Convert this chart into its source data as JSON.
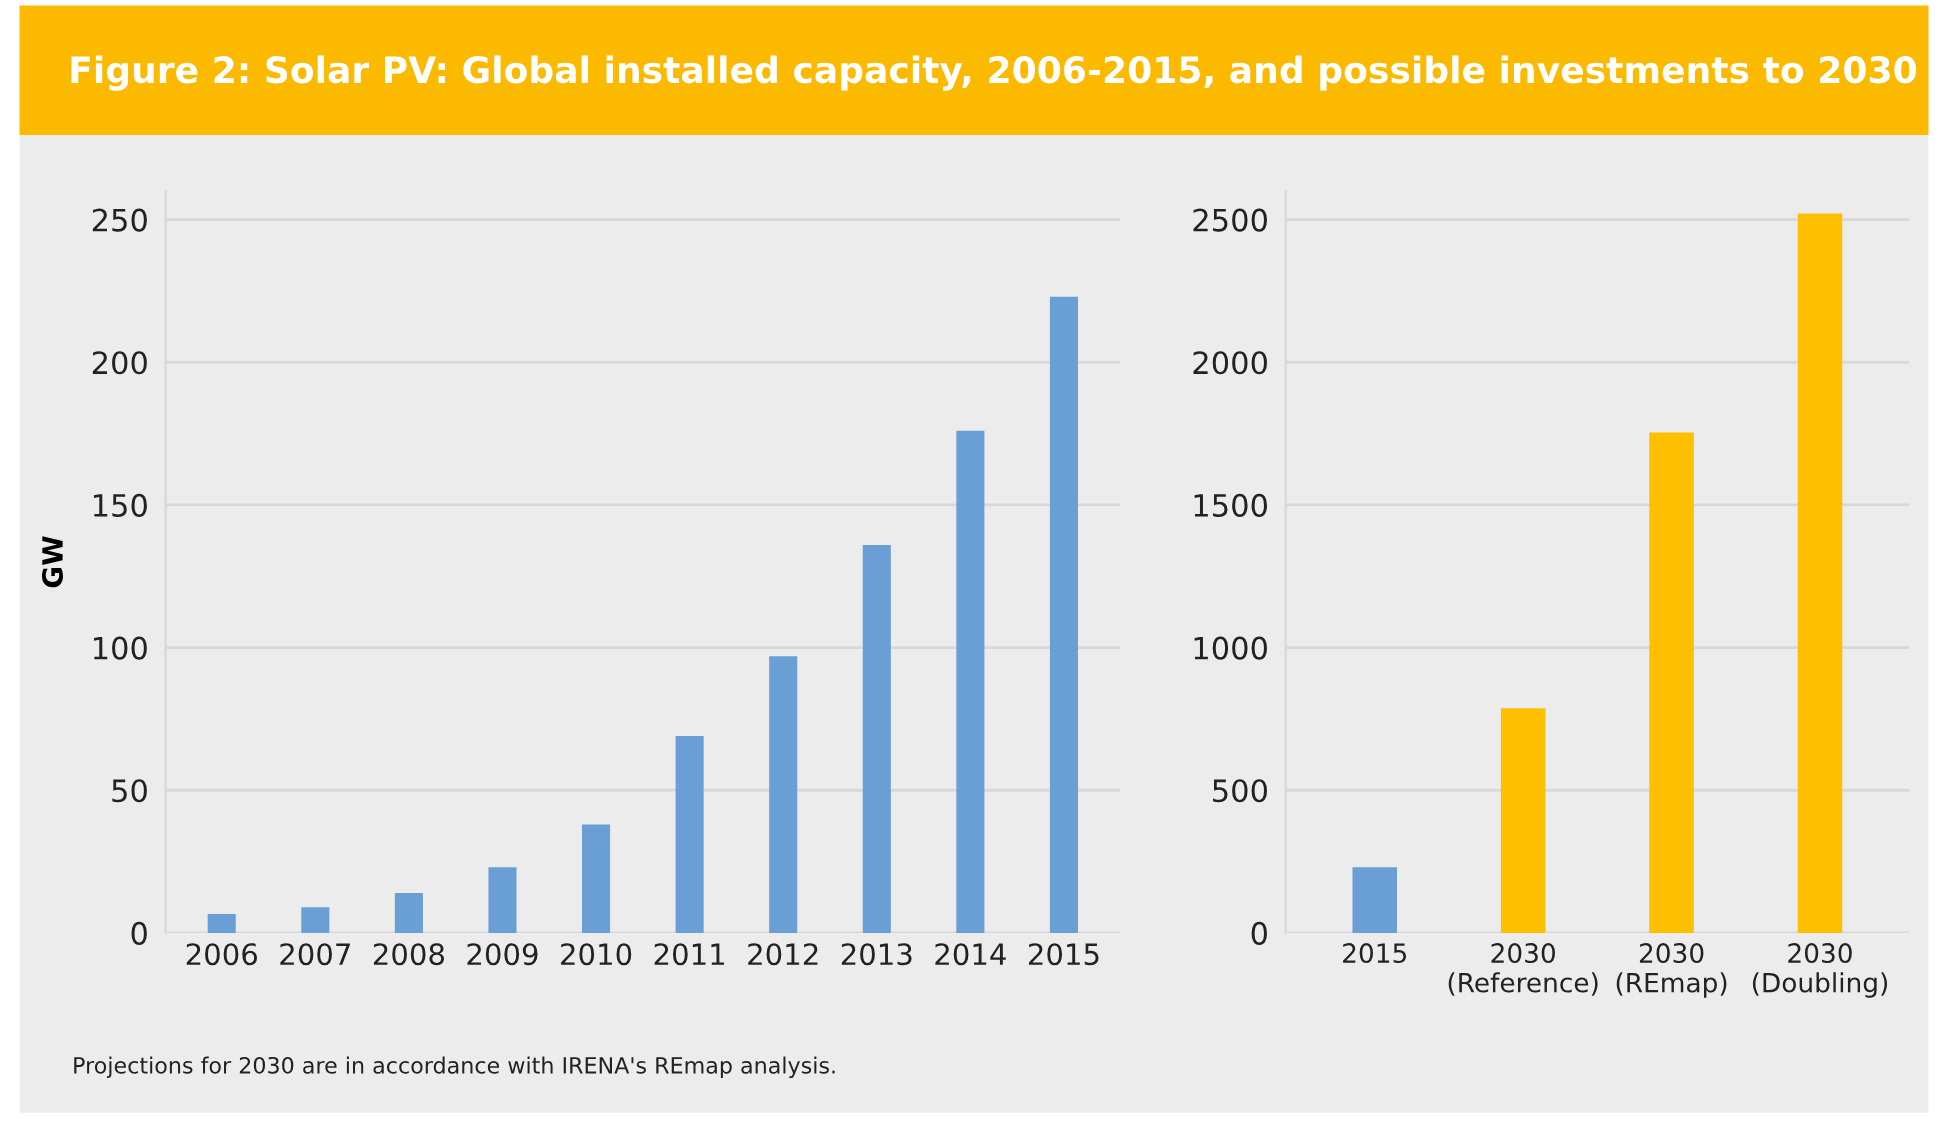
{
  "chart_data": [
    {
      "type": "bar",
      "title": "Figure 2: Solar PV: Global installed capacity, 2006-2015, and possible investments to 2030",
      "ylabel": "GW",
      "categories": [
        "2006",
        "2007",
        "2008",
        "2009",
        "2010",
        "2011",
        "2012",
        "2013",
        "2014",
        "2015"
      ],
      "values": [
        6.6,
        9,
        14,
        23,
        38,
        69,
        97,
        136,
        176,
        223
      ],
      "color": "#6a9fd6",
      "ylim": [
        0,
        260
      ],
      "yticks": [
        0,
        50,
        100,
        150,
        200,
        250
      ],
      "grid": "y",
      "annotations": [
        "Projections for 2030 are in accordance with IRENA's REmap analysis."
      ]
    },
    {
      "type": "bar",
      "categories": [
        "2015",
        "2030\n(Reference)",
        "2030\n(REmap)",
        "2030\n(Doubling)"
      ],
      "values": [
        230,
        787,
        1754,
        2521
      ],
      "colors": [
        "#6a9fd6",
        "#fcc000",
        "#fcc000",
        "#fcc000"
      ],
      "ylim": [
        0,
        2600
      ],
      "yticks": [
        0,
        500,
        1000,
        1500,
        2000,
        2500
      ],
      "grid": "y"
    }
  ]
}
